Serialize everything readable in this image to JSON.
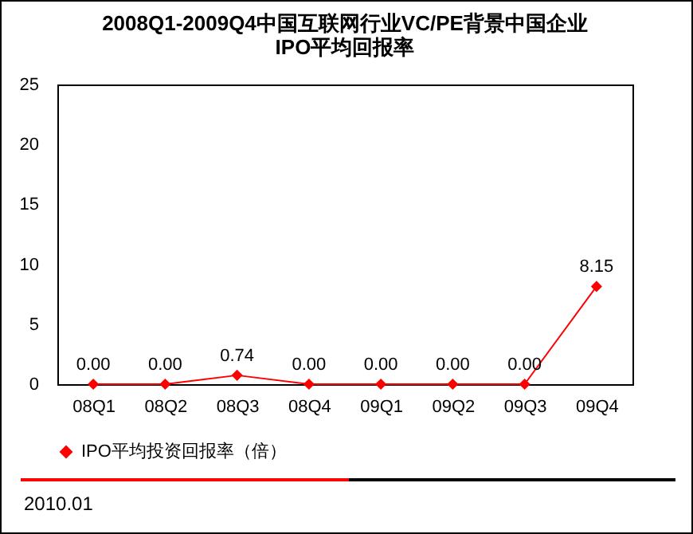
{
  "chart_data": {
    "type": "line",
    "title": "2008Q1-2009Q4中国互联网行业VC/PE背景中国企业\nIPO平均回报率",
    "categories": [
      "08Q1",
      "08Q2",
      "08Q3",
      "08Q4",
      "09Q1",
      "09Q2",
      "09Q3",
      "09Q4"
    ],
    "series": [
      {
        "name": "IPO平均投资回报率（倍）",
        "color": "#ff0000",
        "values": [
          0.0,
          0.0,
          0.74,
          0.0,
          0.0,
          0.0,
          0.0,
          8.15
        ],
        "value_labels": [
          "0.00",
          "0.00",
          "0.74",
          "0.00",
          "0.00",
          "0.00",
          "0.00",
          "8.15"
        ]
      }
    ],
    "ylim": [
      0,
      25
    ],
    "yticks": [
      0,
      5,
      10,
      15,
      20,
      25
    ],
    "grid": false,
    "legend": "bottom",
    "marker": "diamond",
    "annotations": [
      "2010.01"
    ]
  }
}
